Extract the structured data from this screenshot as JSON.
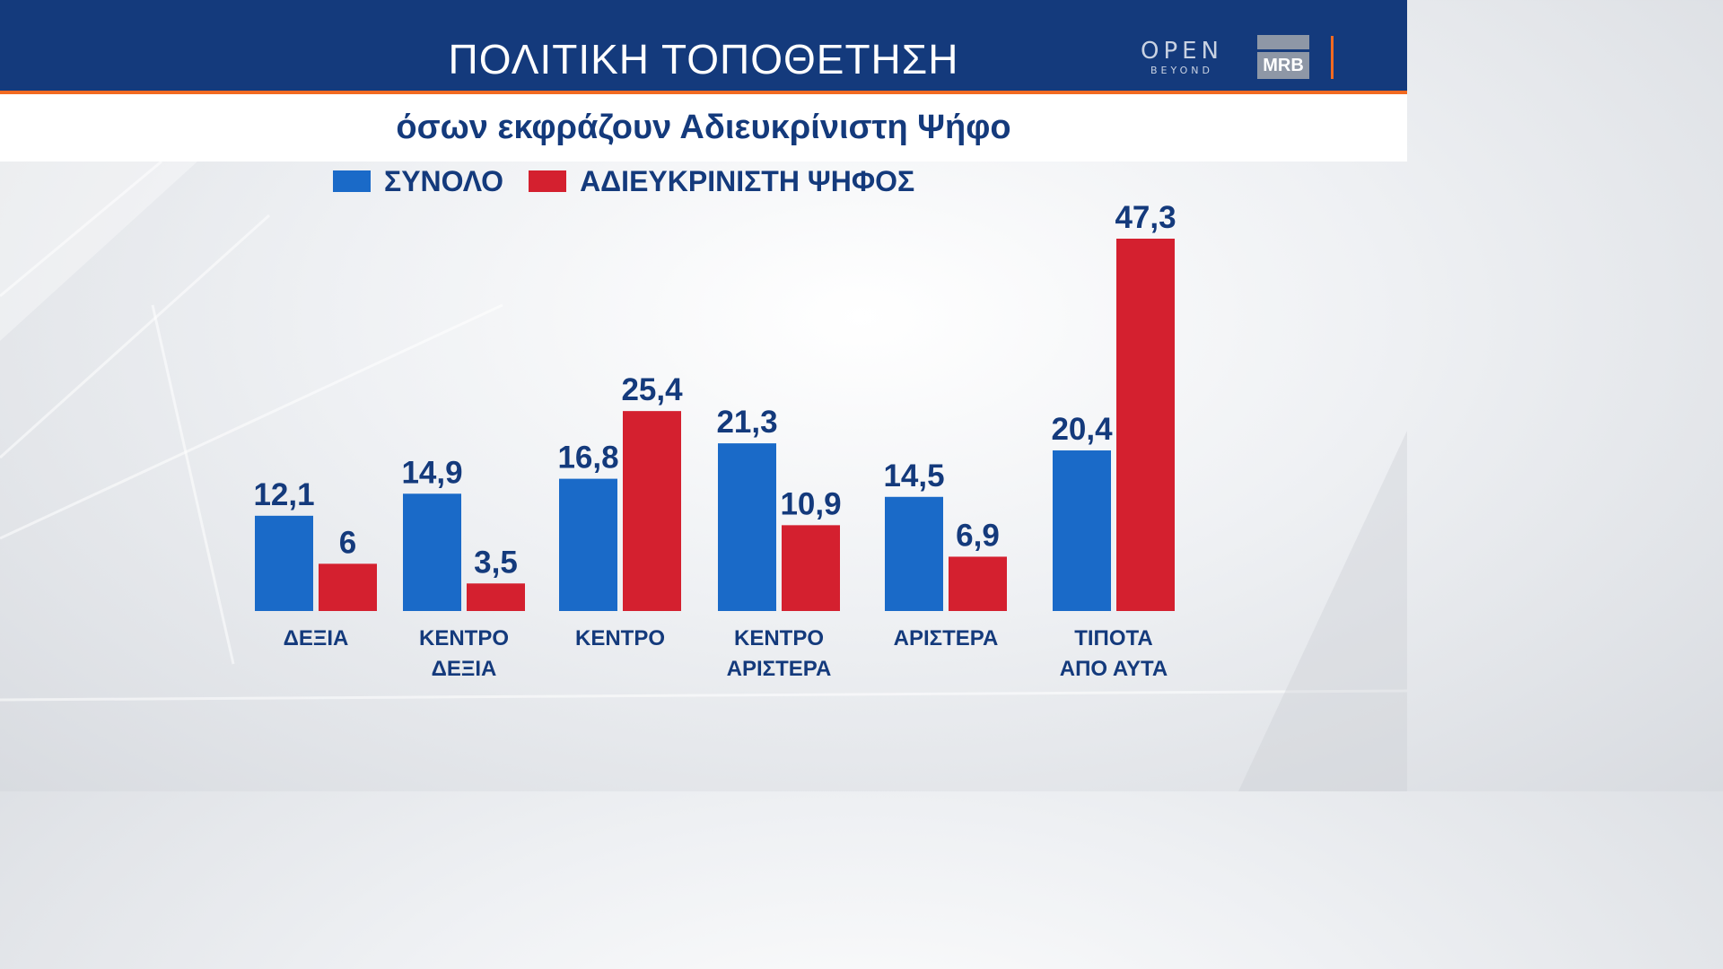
{
  "header": {
    "title": "ΠΟΛΙΤΙΚΗ ΤΟΠΟΘΕΤΗΣΗ",
    "logo_open_text": "OPEN",
    "logo_open_sub": "BEYOND",
    "logo_mrb_text": "MRB"
  },
  "subtitle": "όσων εκφράζουν Αδιευκρίνιστη Ψήφο",
  "colors": {
    "header_bg": "#143a7c",
    "accent_orange": "#f26a21",
    "text_navy": "#143a7c",
    "series_blue": "#1a6ac8",
    "series_red": "#d4202f"
  },
  "chart_data": {
    "type": "bar",
    "categories": [
      [
        "ΔΕΞΙΑ"
      ],
      [
        "ΚΕΝΤΡΟ",
        "ΔΕΞΙΑ"
      ],
      [
        "ΚΕΝΤΡΟ"
      ],
      [
        "ΚΕΝΤΡΟ",
        "ΑΡΙΣΤΕΡΑ"
      ],
      [
        "ΑΡΙΣΤΕΡΑ"
      ],
      [
        "ΤΙΠΟΤΑ",
        "ΑΠΟ ΑΥΤΑ"
      ]
    ],
    "series": [
      {
        "name": "ΣΥΝΟΛΟ",
        "color": "#1a6ac8",
        "values": [
          12.1,
          14.9,
          16.8,
          21.3,
          14.5,
          20.4
        ],
        "labels": [
          "12,1",
          "14,9",
          "16,8",
          "21,3",
          "14,5",
          "20,4"
        ]
      },
      {
        "name": "ΑΔΙΕΥΚΡΙΝΙΣΤΗ ΨΗΦΟΣ",
        "color": "#d4202f",
        "values": [
          6,
          3.5,
          25.4,
          10.9,
          6.9,
          47.3
        ],
        "labels": [
          "6",
          "3,5",
          "25,4",
          "10,9",
          "6,9",
          "47,3"
        ]
      }
    ],
    "ylim": [
      0,
      47.3
    ],
    "grid": false,
    "legend_position": "top-left"
  }
}
